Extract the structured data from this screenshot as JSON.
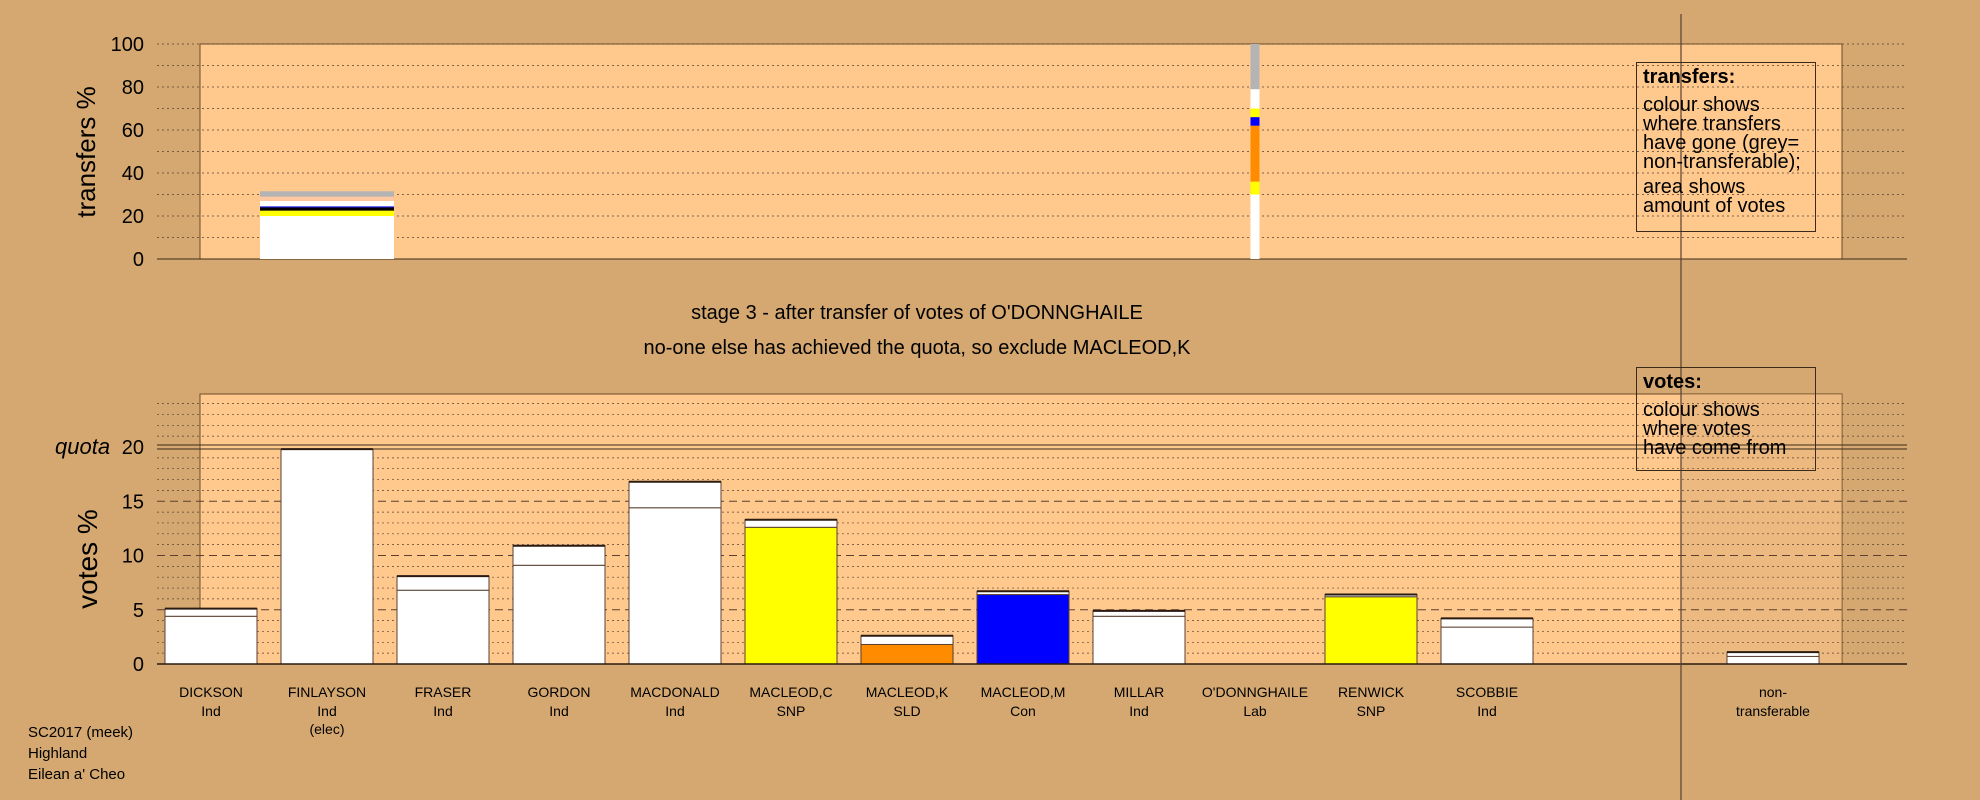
{
  "chart_data": [
    {
      "type": "bar",
      "name": "transfers",
      "ylabel": "transfers %",
      "ylim": [
        0,
        100
      ],
      "yticks": [
        "0",
        "20",
        "40",
        "60",
        "80",
        "100"
      ],
      "grid": "dotted",
      "bars": [
        {
          "category": "FINLAYSON",
          "segments": [
            {
              "value": 20,
              "color": "#ffffff"
            },
            {
              "value": 2.5,
              "color": "#ffff00"
            },
            {
              "value": 1.5,
              "color": "#000000"
            },
            {
              "value": 0.5,
              "color": "#0000ff"
            },
            {
              "value": 2.5,
              "color": "#ffffff"
            },
            {
              "value": 2,
              "color": "#ffc8a0"
            },
            {
              "value": 2.5,
              "color": "#b4b4b4"
            }
          ]
        },
        {
          "category": "O'DONNGHAILE",
          "segments": [
            {
              "value": 30,
              "color": "#ffffff"
            },
            {
              "value": 6,
              "color": "#ffff00"
            },
            {
              "value": 26,
              "color": "#ff8c00"
            },
            {
              "value": 4,
              "color": "#0000ff"
            },
            {
              "value": 4,
              "color": "#ffff00"
            },
            {
              "value": 9,
              "color": "#ffffff"
            },
            {
              "value": 21,
              "color": "#b4b4b4"
            }
          ]
        }
      ]
    },
    {
      "type": "bar",
      "name": "votes",
      "ylabel": "votes %",
      "ylim": [
        0,
        20
      ],
      "yticks": [
        "0",
        "5",
        "10",
        "15",
        "20"
      ],
      "quota": 20,
      "quota_label": "quota",
      "grid": "dashed",
      "categories": [
        {
          "name": "DICKSON",
          "party": "Ind",
          "extra": "",
          "base": 4.4,
          "top": 5.1,
          "color": "#ffffff"
        },
        {
          "name": "FINLAYSON",
          "party": "Ind",
          "extra": "(elec)",
          "base": 19.8,
          "top": 19.8,
          "color": "#ffffff"
        },
        {
          "name": "FRASER",
          "party": "Ind",
          "extra": "",
          "base": 6.8,
          "top": 8.1,
          "color": "#ffffff"
        },
        {
          "name": "GORDON",
          "party": "Ind",
          "extra": "",
          "base": 9.1,
          "top": 10.9,
          "color": "#ffffff"
        },
        {
          "name": "MACDONALD",
          "party": "Ind",
          "extra": "",
          "base": 14.4,
          "top": 16.8,
          "color": "#ffffff"
        },
        {
          "name": "MACLEOD,C",
          "party": "SNP",
          "extra": "",
          "base": 12.6,
          "top": 13.3,
          "color": "#ffff00"
        },
        {
          "name": "MACLEOD,K",
          "party": "SLD",
          "extra": "",
          "base": 1.8,
          "top": 2.6,
          "color": "#ff8c00"
        },
        {
          "name": "MACLEOD,M",
          "party": "Con",
          "extra": "",
          "base": 6.4,
          "top": 6.7,
          "color": "#0000ff"
        },
        {
          "name": "MILLAR",
          "party": "Ind",
          "extra": "",
          "base": 4.4,
          "top": 4.9,
          "color": "#ffffff"
        },
        {
          "name": "O'DONNGHAILE",
          "party": "Lab",
          "extra": "",
          "base": 0,
          "top": 0,
          "color": "#ffffff"
        },
        {
          "name": "RENWICK",
          "party": "SNP",
          "extra": "",
          "base": 6.2,
          "top": 6.4,
          "color": "#ffff00"
        },
        {
          "name": "SCOBBIE",
          "party": "Ind",
          "extra": "",
          "base": 3.4,
          "top": 4.2,
          "color": "#ffffff"
        }
      ],
      "nontransferable": {
        "line1": "non-",
        "line2": "transferable",
        "base": 0.7,
        "top": 1.1,
        "color": "#ffffff"
      }
    }
  ],
  "stage_text": "stage 3 - after transfer of votes of O'DONNGHAILE",
  "action_text": "no-one else has achieved the quota, so exclude MACLEOD,K",
  "transfers_box": {
    "title": "transfers:",
    "lines": [
      "colour shows",
      "where transfers",
      "have gone (grey=",
      "non-transferable);"
    ],
    "lines2": [
      "area shows",
      "amount of votes"
    ]
  },
  "votes_box": {
    "title": "votes:",
    "lines": [
      "colour shows",
      "where votes",
      "have come from"
    ]
  },
  "footer": [
    "SC2017 (meek)",
    "Highland",
    "Eilean a' Cheo"
  ]
}
